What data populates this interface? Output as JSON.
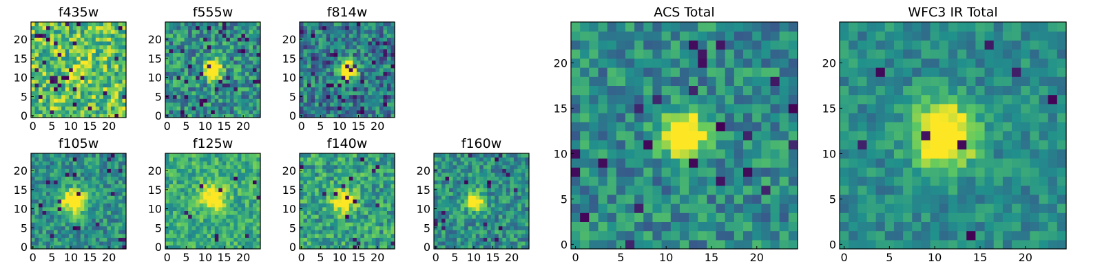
{
  "figure": {
    "background": "#ffffff",
    "colormap": [
      "#440154",
      "#3b528b",
      "#21918c",
      "#5ec962",
      "#fde725"
    ]
  },
  "chart_data": [
    {
      "type": "heatmap",
      "title": "f435w",
      "grid_size": 25,
      "xlim": [
        0,
        24
      ],
      "ylim": [
        0,
        24
      ],
      "xticks": [
        0,
        5,
        10,
        15,
        20
      ],
      "yticks": [
        0,
        5,
        10,
        15,
        20
      ],
      "source_center": [
        12,
        12
      ],
      "source_sigma": 1.6,
      "source_amp": 0.15,
      "background": 0.72,
      "noise": 0.28,
      "dark_fraction": 0.05,
      "seed": 11
    },
    {
      "type": "heatmap",
      "title": "f555w",
      "grid_size": 25,
      "xlim": [
        0,
        24
      ],
      "ylim": [
        0,
        24
      ],
      "xticks": [
        0,
        5,
        10,
        15,
        20
      ],
      "yticks": [
        0,
        5,
        10,
        15,
        20
      ],
      "source_center": [
        12,
        12
      ],
      "source_sigma": 1.7,
      "source_amp": 0.55,
      "background": 0.5,
      "noise": 0.25,
      "dark_fraction": 0.06,
      "seed": 23
    },
    {
      "type": "heatmap",
      "title": "f814w",
      "grid_size": 25,
      "xlim": [
        0,
        24
      ],
      "ylim": [
        0,
        24
      ],
      "xticks": [
        0,
        5,
        10,
        15,
        20
      ],
      "yticks": [
        0,
        5,
        10,
        15,
        20
      ],
      "source_center": [
        12,
        12
      ],
      "source_sigma": 1.6,
      "source_amp": 0.6,
      "background": 0.42,
      "noise": 0.25,
      "dark_fraction": 0.06,
      "seed": 37
    },
    {
      "type": "heatmap",
      "title": "f105w",
      "grid_size": 25,
      "xlim": [
        0,
        24
      ],
      "ylim": [
        0,
        24
      ],
      "xticks": [
        0,
        5,
        10,
        15,
        20
      ],
      "yticks": [
        0,
        5,
        10,
        15,
        20
      ],
      "source_center": [
        11,
        12
      ],
      "source_sigma": 2.3,
      "source_amp": 0.5,
      "background": 0.5,
      "noise": 0.2,
      "dark_fraction": 0.03,
      "seed": 41
    },
    {
      "type": "heatmap",
      "title": "f125w",
      "grid_size": 25,
      "xlim": [
        0,
        24
      ],
      "ylim": [
        0,
        24
      ],
      "xticks": [
        0,
        5,
        10,
        15,
        20
      ],
      "yticks": [
        0,
        5,
        10,
        15,
        20
      ],
      "source_center": [
        12,
        13
      ],
      "source_sigma": 2.3,
      "source_amp": 0.35,
      "background": 0.62,
      "noise": 0.18,
      "dark_fraction": 0.02,
      "seed": 53
    },
    {
      "type": "heatmap",
      "title": "f140w",
      "grid_size": 25,
      "xlim": [
        0,
        24
      ],
      "ylim": [
        0,
        24
      ],
      "xticks": [
        0,
        5,
        10,
        15,
        20
      ],
      "yticks": [
        0,
        5,
        10,
        15,
        20
      ],
      "source_center": [
        11,
        12
      ],
      "source_sigma": 2.0,
      "source_amp": 0.4,
      "background": 0.58,
      "noise": 0.22,
      "dark_fraction": 0.03,
      "seed": 67
    },
    {
      "type": "heatmap",
      "title": "f160w",
      "grid_size": 25,
      "xlim": [
        0,
        24
      ],
      "ylim": [
        0,
        24
      ],
      "xticks": [
        0,
        5,
        10,
        15,
        20
      ],
      "yticks": [
        0,
        5,
        10,
        15,
        20
      ],
      "source_center": [
        10,
        12
      ],
      "source_sigma": 1.6,
      "source_amp": 0.5,
      "background": 0.5,
      "noise": 0.2,
      "dark_fraction": 0.03,
      "seed": 79
    },
    {
      "type": "heatmap",
      "title": "ACS Total",
      "grid_size": 25,
      "xlim": [
        0,
        24
      ],
      "ylim": [
        0,
        24
      ],
      "xticks": [
        0,
        5,
        10,
        15,
        20
      ],
      "yticks": [
        0,
        5,
        10,
        15,
        20
      ],
      "source_center": [
        12,
        12
      ],
      "source_sigma": 1.7,
      "source_amp": 0.6,
      "background": 0.48,
      "noise": 0.2,
      "dark_fraction": 0.04,
      "seed": 97
    },
    {
      "type": "heatmap",
      "title": "WFC3 IR Total",
      "grid_size": 25,
      "xlim": [
        0,
        24
      ],
      "ylim": [
        0,
        24
      ],
      "xticks": [
        0,
        5,
        10,
        15,
        20
      ],
      "yticks": [
        0,
        5,
        10,
        15,
        20
      ],
      "source_center": [
        11,
        12
      ],
      "source_sigma": 2.4,
      "source_amp": 0.55,
      "background": 0.48,
      "noise": 0.14,
      "dark_fraction": 0.02,
      "seed": 113
    }
  ]
}
